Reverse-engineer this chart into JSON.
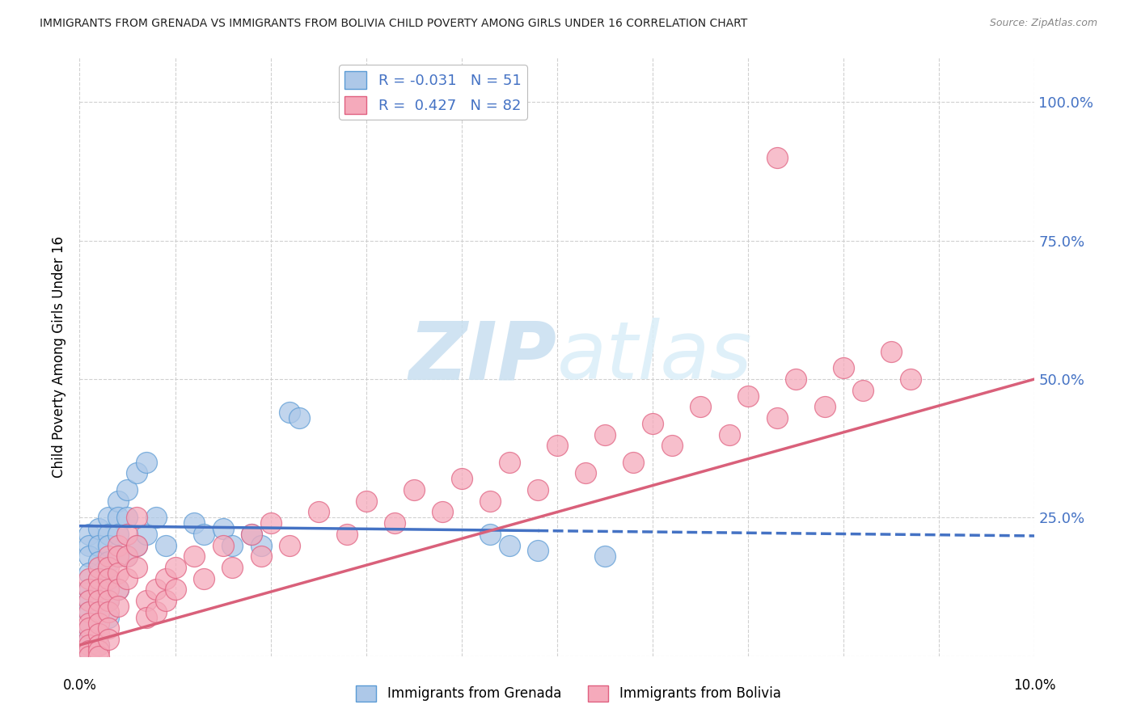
{
  "title": "IMMIGRANTS FROM GRENADA VS IMMIGRANTS FROM BOLIVIA CHILD POVERTY AMONG GIRLS UNDER 16 CORRELATION CHART",
  "source": "Source: ZipAtlas.com",
  "ylabel": "Child Poverty Among Girls Under 16",
  "xlim": [
    0.0,
    0.1
  ],
  "ylim": [
    0.0,
    1.08
  ],
  "grenada_R": -0.031,
  "grenada_N": 51,
  "bolivia_R": 0.427,
  "bolivia_N": 82,
  "grenada_color": "#adc8e8",
  "bolivia_color": "#f5aabb",
  "grenada_edge_color": "#5b9bd5",
  "bolivia_edge_color": "#e06080",
  "grenada_line_color": "#4472c4",
  "bolivia_line_color": "#d9607a",
  "watermark_color": "#daeef8",
  "background_color": "#ffffff",
  "grid_color": "#d0d0d0",
  "right_axis_color": "#4472c4",
  "ytick_positions": [
    0.0,
    0.25,
    0.5,
    0.75,
    1.0
  ],
  "ytick_labels": [
    "",
    "25.0%",
    "50.0%",
    "75.0%",
    "100.0%"
  ],
  "xtick_positions": [
    0.0,
    0.01,
    0.02,
    0.03,
    0.04,
    0.05,
    0.06,
    0.07,
    0.08,
    0.09,
    0.1
  ],
  "grenada_x": [
    0.001,
    0.001,
    0.001,
    0.001,
    0.001,
    0.001,
    0.001,
    0.001,
    0.001,
    0.001,
    0.002,
    0.002,
    0.002,
    0.002,
    0.002,
    0.002,
    0.002,
    0.002,
    0.003,
    0.003,
    0.003,
    0.003,
    0.003,
    0.003,
    0.003,
    0.004,
    0.004,
    0.004,
    0.004,
    0.004,
    0.005,
    0.005,
    0.005,
    0.006,
    0.006,
    0.007,
    0.007,
    0.008,
    0.009,
    0.012,
    0.013,
    0.015,
    0.016,
    0.018,
    0.019,
    0.022,
    0.023,
    0.043,
    0.045,
    0.048,
    0.055
  ],
  "grenada_y": [
    0.22,
    0.2,
    0.18,
    0.15,
    0.12,
    0.1,
    0.08,
    0.05,
    0.03,
    0.01,
    0.23,
    0.2,
    0.17,
    0.14,
    0.1,
    0.07,
    0.04,
    0.02,
    0.25,
    0.22,
    0.2,
    0.17,
    0.14,
    0.1,
    0.07,
    0.28,
    0.25,
    0.22,
    0.18,
    0.12,
    0.3,
    0.25,
    0.18,
    0.33,
    0.2,
    0.35,
    0.22,
    0.25,
    0.2,
    0.24,
    0.22,
    0.23,
    0.2,
    0.22,
    0.2,
    0.44,
    0.43,
    0.22,
    0.2,
    0.19,
    0.18
  ],
  "bolivia_x": [
    0.001,
    0.001,
    0.001,
    0.001,
    0.001,
    0.001,
    0.001,
    0.001,
    0.001,
    0.001,
    0.002,
    0.002,
    0.002,
    0.002,
    0.002,
    0.002,
    0.002,
    0.002,
    0.002,
    0.002,
    0.003,
    0.003,
    0.003,
    0.003,
    0.003,
    0.003,
    0.003,
    0.003,
    0.004,
    0.004,
    0.004,
    0.004,
    0.004,
    0.005,
    0.005,
    0.005,
    0.006,
    0.006,
    0.006,
    0.007,
    0.007,
    0.008,
    0.008,
    0.009,
    0.009,
    0.01,
    0.01,
    0.012,
    0.013,
    0.015,
    0.016,
    0.018,
    0.019,
    0.02,
    0.022,
    0.025,
    0.028,
    0.03,
    0.033,
    0.035,
    0.038,
    0.04,
    0.043,
    0.045,
    0.048,
    0.05,
    0.053,
    0.055,
    0.058,
    0.06,
    0.062,
    0.065,
    0.068,
    0.07,
    0.073,
    0.075,
    0.078,
    0.08,
    0.082,
    0.085,
    0.087,
    0.073
  ],
  "bolivia_y": [
    0.14,
    0.12,
    0.1,
    0.08,
    0.06,
    0.05,
    0.03,
    0.02,
    0.01,
    0.0,
    0.16,
    0.14,
    0.12,
    0.1,
    0.08,
    0.06,
    0.04,
    0.02,
    0.01,
    0.0,
    0.18,
    0.16,
    0.14,
    0.12,
    0.1,
    0.08,
    0.05,
    0.03,
    0.2,
    0.18,
    0.15,
    0.12,
    0.09,
    0.22,
    0.18,
    0.14,
    0.25,
    0.2,
    0.16,
    0.1,
    0.07,
    0.12,
    0.08,
    0.14,
    0.1,
    0.16,
    0.12,
    0.18,
    0.14,
    0.2,
    0.16,
    0.22,
    0.18,
    0.24,
    0.2,
    0.26,
    0.22,
    0.28,
    0.24,
    0.3,
    0.26,
    0.32,
    0.28,
    0.35,
    0.3,
    0.38,
    0.33,
    0.4,
    0.35,
    0.42,
    0.38,
    0.45,
    0.4,
    0.47,
    0.43,
    0.5,
    0.45,
    0.52,
    0.48,
    0.55,
    0.5,
    0.9
  ]
}
